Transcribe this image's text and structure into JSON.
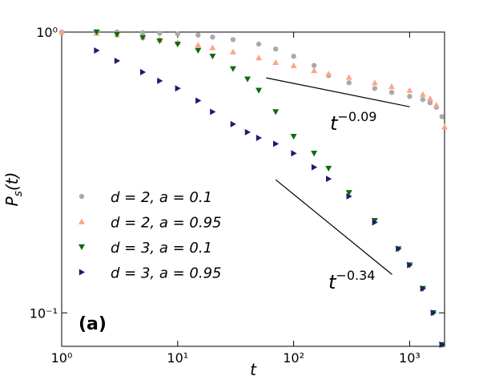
{
  "chart_data": {
    "type": "scatter",
    "log_x": true,
    "log_y": true,
    "xlabel": "t",
    "ylabel": {
      "base": "P",
      "sub": "s",
      "rest": "(t)"
    },
    "panel_label": "(a)",
    "legend": "center left",
    "xlim": [
      1,
      2000
    ],
    "ylim": [
      0.076,
      1
    ],
    "xticks": [
      {
        "value": 1,
        "label": "10⁰"
      },
      {
        "value": 10,
        "label": "10¹"
      },
      {
        "value": 100,
        "label": "10²"
      },
      {
        "value": 1000,
        "label": "10³"
      }
    ],
    "yticks": [
      {
        "value": 0.1,
        "label": "10⁻¹"
      },
      {
        "value": 1,
        "label": "10⁰"
      }
    ],
    "series": [
      {
        "name": "d = 2, a = 0.1",
        "color": "#aaaaaa",
        "marker": "circle",
        "x": [
          1,
          2,
          3,
          5,
          7,
          10,
          15,
          20,
          30,
          50,
          70,
          100,
          150,
          200,
          300,
          500,
          700,
          1000,
          1300,
          1500,
          1700,
          1900
        ],
        "values": [
          1,
          1,
          1,
          0.995,
          0.99,
          0.985,
          0.975,
          0.96,
          0.94,
          0.906,
          0.87,
          0.82,
          0.76,
          0.7,
          0.66,
          0.63,
          0.61,
          0.59,
          0.575,
          0.56,
          0.54,
          0.5
        ]
      },
      {
        "name": "d = 2, a = 0.95",
        "color": "#fca588",
        "marker": "triangle-up",
        "x": [
          1,
          2,
          3,
          5,
          7,
          10,
          15,
          20,
          30,
          50,
          70,
          100,
          150,
          200,
          300,
          500,
          700,
          1000,
          1300,
          1500,
          1700,
          2000
        ],
        "values": [
          1,
          0.99,
          0.98,
          0.96,
          0.94,
          0.92,
          0.9,
          0.88,
          0.85,
          0.81,
          0.78,
          0.76,
          0.73,
          0.71,
          0.69,
          0.66,
          0.64,
          0.62,
          0.6,
          0.58,
          0.55,
          0.46
        ]
      },
      {
        "name": "d = 3, a = 0.1",
        "color": "#0d6b0d",
        "marker": "triangle-down",
        "x": [
          2,
          3,
          5,
          7,
          10,
          15,
          20,
          30,
          40,
          50,
          70,
          100,
          150,
          200,
          300,
          500,
          800,
          1000,
          1300,
          1600,
          1900
        ],
        "values": [
          1,
          0.98,
          0.955,
          0.93,
          0.905,
          0.86,
          0.82,
          0.74,
          0.68,
          0.62,
          0.52,
          0.425,
          0.37,
          0.327,
          0.268,
          0.213,
          0.169,
          0.148,
          0.122,
          0.1,
          0.077
        ]
      },
      {
        "name": "d = 3, a = 0.95",
        "color": "#1c1c6e",
        "marker": "triangle-right",
        "x": [
          2,
          3,
          5,
          7,
          10,
          15,
          20,
          30,
          40,
          50,
          70,
          100,
          150,
          200,
          300,
          500,
          800,
          1000,
          1300,
          1600,
          1900
        ],
        "values": [
          0.86,
          0.79,
          0.72,
          0.67,
          0.63,
          0.57,
          0.52,
          0.47,
          0.44,
          0.42,
          0.4,
          0.37,
          0.33,
          0.3,
          0.26,
          0.21,
          0.169,
          0.148,
          0.122,
          0.1,
          0.077
        ]
      }
    ],
    "annotations": [
      {
        "base": "t",
        "sup": "−0.09",
        "line_x": [
          58,
          1000
        ],
        "line_y": [
          0.687,
          0.542
        ]
      },
      {
        "base": "t",
        "sup": "−0.34",
        "line_x": [
          70,
          705
        ],
        "line_y": [
          0.298,
          0.137
        ]
      }
    ]
  }
}
